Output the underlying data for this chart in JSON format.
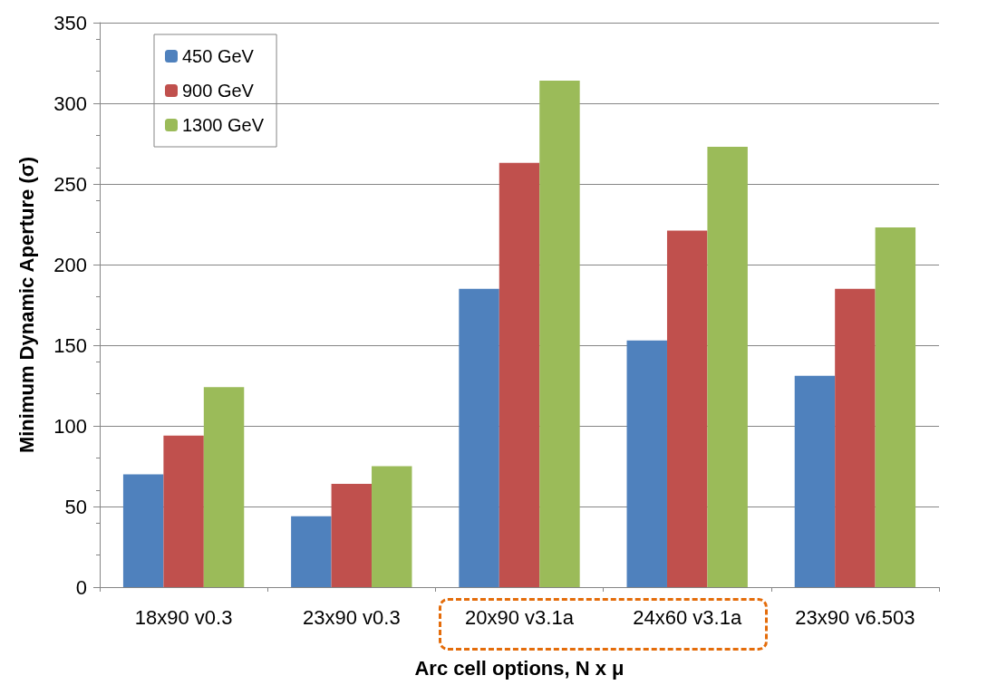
{
  "chart_data": {
    "type": "bar",
    "xlabel": "Arc cell options, N x μ",
    "ylabel": "Minimum Dynamic Aperture (σ)",
    "categories": [
      "18x90 v0.3",
      "23x90 v0.3",
      "20x90 v3.1a",
      "24x60 v3.1a",
      "23x90 v6.503"
    ],
    "series": [
      {
        "name": "450 GeV",
        "color": "#4f81bd",
        "values": [
          70,
          44,
          185,
          153,
          131
        ]
      },
      {
        "name": "900 GeV",
        "color": "#c0504d",
        "values": [
          94,
          64,
          263,
          221,
          185
        ]
      },
      {
        "name": "1300 GeV",
        "color": "#9bbb59",
        "values": [
          124,
          75,
          314,
          273,
          223
        ]
      }
    ],
    "ylim": [
      0,
      350
    ],
    "yticks": [
      0,
      50,
      100,
      150,
      200,
      250,
      300,
      350
    ],
    "grid": "y",
    "legend": "top left"
  }
}
